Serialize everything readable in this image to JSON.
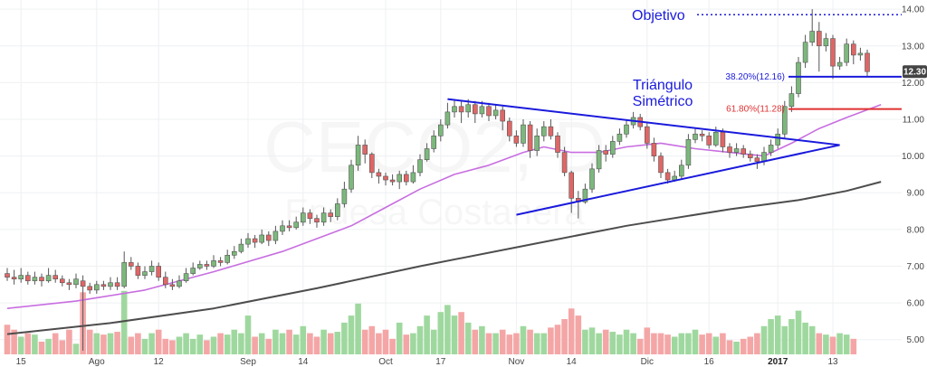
{
  "chart_data": {
    "type": "candlestick",
    "watermark": {
      "ticker": "CECO2, D",
      "name": "Endesa Costanera"
    },
    "y_axis": {
      "min": 4.55,
      "max": 14.25,
      "ticks": [
        "14.00",
        "13.00",
        "12.00",
        "11.00",
        "10.00",
        "9.00",
        "8.00",
        "7.00",
        "6.00",
        "5.00"
      ]
    },
    "x_axis": {
      "ticks": [
        {
          "label": "15",
          "i": 2
        },
        {
          "label": "Ago",
          "i": 13
        },
        {
          "label": "12",
          "i": 22
        },
        {
          "label": "Sep",
          "i": 35
        },
        {
          "label": "14",
          "i": 43
        },
        {
          "label": "Oct",
          "i": 55
        },
        {
          "label": "17",
          "i": 63
        },
        {
          "label": "Nov",
          "i": 74
        },
        {
          "label": "14",
          "i": 82
        },
        {
          "label": "Dic",
          "i": 93
        },
        {
          "label": "16",
          "i": 102
        },
        {
          "label": "2017",
          "i": 112,
          "bold": true
        },
        {
          "label": "13",
          "i": 120
        }
      ]
    },
    "price_badge": "12.30",
    "candles": [
      [
        6.8,
        6.7,
        6.95,
        6.6
      ],
      [
        6.7,
        6.65,
        6.9,
        6.5
      ],
      [
        6.65,
        6.75,
        6.95,
        6.55
      ],
      [
        6.75,
        6.6,
        6.85,
        6.5
      ],
      [
        6.6,
        6.7,
        6.85,
        6.5
      ],
      [
        6.7,
        6.6,
        6.8,
        6.45
      ],
      [
        6.6,
        6.75,
        6.95,
        6.55
      ],
      [
        6.75,
        6.65,
        6.9,
        6.55
      ],
      [
        6.65,
        6.55,
        6.75,
        6.45
      ],
      [
        6.55,
        6.5,
        6.65,
        6.35
      ],
      [
        6.5,
        6.65,
        6.8,
        6.4
      ],
      [
        6.6,
        6.45,
        6.75,
        4.7
      ],
      [
        6.45,
        6.35,
        6.55,
        6.25
      ],
      [
        6.35,
        6.5,
        6.6,
        6.25
      ],
      [
        6.5,
        6.45,
        6.6,
        6.35
      ],
      [
        6.45,
        6.55,
        6.7,
        6.35
      ],
      [
        6.55,
        6.45,
        6.7,
        6.35
      ],
      [
        6.45,
        7.1,
        7.4,
        6.4
      ],
      [
        7.1,
        7.0,
        7.25,
        6.9
      ],
      [
        7.0,
        6.75,
        7.1,
        6.65
      ],
      [
        6.75,
        6.85,
        7.0,
        6.65
      ],
      [
        6.85,
        7.0,
        7.15,
        6.75
      ],
      [
        7.0,
        6.7,
        7.1,
        6.6
      ],
      [
        6.7,
        6.5,
        6.85,
        6.4
      ],
      [
        6.5,
        6.45,
        6.65,
        6.35
      ],
      [
        6.45,
        6.6,
        6.75,
        6.4
      ],
      [
        6.6,
        6.8,
        6.95,
        6.55
      ],
      [
        6.8,
        6.95,
        7.1,
        6.75
      ],
      [
        6.95,
        7.05,
        7.15,
        6.9
      ],
      [
        7.05,
        7.0,
        7.15,
        6.9
      ],
      [
        7.0,
        7.15,
        7.3,
        6.95
      ],
      [
        7.15,
        7.1,
        7.25,
        7.0
      ],
      [
        7.1,
        7.3,
        7.45,
        7.05
      ],
      [
        7.3,
        7.4,
        7.55,
        7.2
      ],
      [
        7.4,
        7.6,
        7.75,
        7.35
      ],
      [
        7.6,
        7.75,
        7.9,
        7.5
      ],
      [
        7.75,
        7.65,
        7.85,
        7.5
      ],
      [
        7.65,
        7.85,
        8.0,
        7.6
      ],
      [
        7.85,
        7.7,
        7.95,
        7.55
      ],
      [
        7.7,
        7.95,
        8.1,
        7.6
      ],
      [
        7.95,
        8.1,
        8.25,
        7.85
      ],
      [
        8.1,
        8.05,
        8.25,
        7.95
      ],
      [
        8.05,
        8.2,
        8.35,
        8.0
      ],
      [
        8.2,
        8.45,
        8.6,
        8.1
      ],
      [
        8.45,
        8.3,
        8.55,
        8.15
      ],
      [
        8.3,
        8.2,
        8.4,
        8.05
      ],
      [
        8.2,
        8.45,
        8.6,
        8.1
      ],
      [
        8.45,
        8.35,
        8.55,
        8.2
      ],
      [
        8.35,
        8.7,
        8.85,
        8.25
      ],
      [
        8.7,
        9.1,
        9.3,
        8.6
      ],
      [
        9.1,
        9.75,
        9.9,
        9.0
      ],
      [
        9.75,
        10.3,
        10.55,
        9.6
      ],
      [
        10.3,
        10.05,
        10.45,
        9.8
      ],
      [
        10.05,
        9.55,
        10.1,
        9.4
      ],
      [
        9.55,
        9.45,
        9.65,
        9.25
      ],
      [
        9.45,
        9.35,
        9.55,
        9.2
      ],
      [
        9.35,
        9.3,
        9.5,
        9.2
      ],
      [
        9.3,
        9.5,
        9.6,
        9.1
      ],
      [
        9.5,
        9.3,
        9.6,
        9.2
      ],
      [
        9.3,
        9.55,
        9.75,
        9.25
      ],
      [
        9.55,
        9.9,
        10.05,
        9.45
      ],
      [
        9.9,
        10.2,
        10.35,
        9.85
      ],
      [
        10.2,
        10.55,
        10.7,
        10.1
      ],
      [
        10.55,
        10.85,
        11.0,
        10.4
      ],
      [
        10.85,
        11.2,
        11.45,
        10.75
      ],
      [
        11.2,
        11.35,
        11.55,
        11.05
      ],
      [
        11.35,
        11.2,
        11.5,
        10.9
      ],
      [
        11.2,
        11.4,
        11.55,
        11.05
      ],
      [
        11.4,
        11.15,
        11.5,
        10.9
      ],
      [
        11.15,
        11.35,
        11.5,
        11.05
      ],
      [
        11.35,
        11.1,
        11.45,
        10.95
      ],
      [
        11.1,
        11.25,
        11.4,
        11.0
      ],
      [
        11.25,
        10.95,
        11.35,
        10.7
      ],
      [
        10.95,
        10.55,
        11.05,
        10.4
      ],
      [
        10.55,
        10.35,
        10.7,
        10.25
      ],
      [
        10.35,
        10.85,
        11.0,
        10.25
      ],
      [
        10.85,
        10.15,
        10.95,
        9.95
      ],
      [
        10.15,
        10.55,
        10.75,
        10.0
      ],
      [
        10.55,
        10.8,
        10.95,
        10.4
      ],
      [
        10.8,
        10.55,
        11.0,
        10.45
      ],
      [
        10.55,
        10.1,
        10.65,
        9.95
      ],
      [
        10.1,
        9.55,
        10.25,
        9.45
      ],
      [
        9.55,
        8.85,
        9.6,
        8.45
      ],
      [
        8.85,
        8.75,
        9.05,
        8.3
      ],
      [
        8.75,
        9.1,
        9.25,
        8.7
      ],
      [
        9.1,
        9.65,
        9.8,
        9.0
      ],
      [
        9.65,
        10.15,
        10.3,
        9.55
      ],
      [
        10.15,
        10.05,
        10.3,
        9.85
      ],
      [
        10.05,
        10.4,
        10.55,
        9.95
      ],
      [
        10.4,
        10.6,
        10.75,
        10.3
      ],
      [
        10.6,
        10.85,
        11.0,
        10.5
      ],
      [
        10.85,
        11.05,
        11.2,
        10.75
      ],
      [
        11.05,
        10.8,
        11.15,
        10.7
      ],
      [
        10.8,
        10.35,
        10.9,
        10.2
      ],
      [
        10.35,
        10.0,
        10.5,
        9.85
      ],
      [
        10.0,
        9.55,
        10.1,
        9.4
      ],
      [
        9.55,
        9.35,
        9.65,
        9.25
      ],
      [
        9.35,
        9.45,
        9.6,
        9.3
      ],
      [
        9.45,
        9.75,
        9.9,
        9.35
      ],
      [
        9.75,
        10.45,
        10.6,
        9.65
      ],
      [
        10.45,
        10.6,
        10.75,
        10.35
      ],
      [
        10.6,
        10.55,
        10.7,
        10.4
      ],
      [
        10.55,
        10.3,
        10.65,
        10.2
      ],
      [
        10.3,
        10.65,
        10.8,
        10.25
      ],
      [
        10.65,
        10.25,
        10.75,
        10.1
      ],
      [
        10.25,
        10.1,
        10.35,
        9.95
      ],
      [
        10.1,
        10.2,
        10.35,
        10.0
      ],
      [
        10.2,
        10.05,
        10.3,
        9.95
      ],
      [
        10.05,
        9.95,
        10.15,
        9.85
      ],
      [
        9.95,
        9.85,
        10.05,
        9.65
      ],
      [
        9.85,
        10.1,
        10.25,
        9.75
      ],
      [
        10.1,
        10.3,
        10.45,
        10.0
      ],
      [
        10.3,
        10.6,
        10.75,
        10.2
      ],
      [
        10.6,
        11.35,
        11.5,
        10.5
      ],
      [
        11.35,
        11.7,
        11.9,
        11.2
      ],
      [
        11.7,
        12.55,
        12.7,
        11.6
      ],
      [
        12.55,
        13.1,
        13.3,
        12.4
      ],
      [
        13.1,
        13.4,
        14.0,
        13.0
      ],
      [
        13.4,
        13.0,
        13.65,
        12.3
      ],
      [
        13.0,
        13.2,
        13.35,
        12.85
      ],
      [
        13.2,
        12.45,
        13.3,
        12.1
      ],
      [
        12.45,
        12.55,
        12.7,
        12.35
      ],
      [
        12.55,
        13.05,
        13.2,
        12.45
      ],
      [
        13.05,
        12.75,
        13.15,
        12.5
      ],
      [
        12.75,
        12.8,
        12.95,
        12.6
      ],
      [
        12.8,
        12.3,
        12.9,
        12.15
      ]
    ],
    "volumes": [
      0.42,
      0.35,
      0.25,
      0.3,
      0.28,
      0.18,
      0.22,
      0.3,
      0.2,
      0.35,
      0.15,
      0.88,
      0.35,
      0.3,
      0.28,
      0.3,
      0.32,
      0.9,
      0.25,
      0.3,
      0.22,
      0.3,
      0.35,
      0.22,
      0.2,
      0.25,
      0.3,
      0.22,
      0.28,
      0.2,
      0.25,
      0.3,
      0.28,
      0.35,
      0.3,
      0.55,
      0.25,
      0.3,
      0.22,
      0.35,
      0.3,
      0.35,
      0.28,
      0.4,
      0.3,
      0.25,
      0.35,
      0.3,
      0.32,
      0.45,
      0.55,
      0.72,
      0.35,
      0.4,
      0.3,
      0.35,
      0.22,
      0.45,
      0.28,
      0.3,
      0.4,
      0.55,
      0.35,
      0.6,
      0.7,
      0.55,
      0.6,
      0.45,
      0.35,
      0.4,
      0.3,
      0.3,
      0.35,
      0.28,
      0.3,
      0.4,
      0.35,
      0.3,
      0.3,
      0.38,
      0.42,
      0.5,
      0.65,
      0.55,
      0.35,
      0.38,
      0.3,
      0.35,
      0.32,
      0.28,
      0.35,
      0.3,
      0.22,
      0.38,
      0.3,
      0.3,
      0.28,
      0.25,
      0.3,
      0.3,
      0.35,
      0.28,
      0.3,
      0.25,
      0.3,
      0.2,
      0.18,
      0.22,
      0.25,
      0.3,
      0.4,
      0.5,
      0.55,
      0.4,
      0.5,
      0.62,
      0.45,
      0.4,
      0.3,
      0.28,
      0.25,
      0.3,
      0.28,
      0.22
    ],
    "ma_short": {
      "color": "#c86ee0",
      "points": [
        [
          0,
          5.85
        ],
        [
          10,
          6.05
        ],
        [
          20,
          6.35
        ],
        [
          30,
          6.85
        ],
        [
          40,
          7.4
        ],
        [
          50,
          8.1
        ],
        [
          55,
          8.6
        ],
        [
          60,
          9.1
        ],
        [
          65,
          9.5
        ],
        [
          70,
          9.75
        ],
        [
          75,
          10.1
        ],
        [
          78,
          10.25
        ],
        [
          82,
          10.1
        ],
        [
          86,
          10.1
        ],
        [
          90,
          10.25
        ],
        [
          95,
          10.35
        ],
        [
          100,
          10.2
        ],
        [
          105,
          10.1
        ],
        [
          110,
          10.0
        ],
        [
          114,
          10.35
        ],
        [
          118,
          10.75
        ],
        [
          122,
          11.05
        ],
        [
          127,
          11.4
        ]
      ]
    },
    "ma_long": {
      "color": "#4d4d4d",
      "points": [
        [
          0,
          5.15
        ],
        [
          15,
          5.45
        ],
        [
          30,
          5.85
        ],
        [
          45,
          6.4
        ],
        [
          60,
          7.0
        ],
        [
          75,
          7.55
        ],
        [
          90,
          8.1
        ],
        [
          105,
          8.55
        ],
        [
          115,
          8.8
        ],
        [
          122,
          9.05
        ],
        [
          127,
          9.3
        ]
      ]
    },
    "triangle": {
      "color": "#1a1adc",
      "upper": [
        [
          64,
          11.55
        ],
        [
          121,
          10.3
        ]
      ],
      "lower": [
        [
          74,
          8.4
        ],
        [
          121,
          10.3
        ]
      ],
      "label": [
        "Triángulo",
        "Simétrico"
      ]
    },
    "objetivo": {
      "label": "Objetivo",
      "value": 13.85,
      "color": "#1a1adc"
    },
    "fib_levels": [
      {
        "label": "38.20%(12.16)",
        "value": 12.16,
        "color": "#1a1adc"
      },
      {
        "label": "61.80%(11.28)",
        "value": 11.28,
        "color": "#e03030"
      }
    ],
    "colors": {
      "up": "#7cb87c",
      "down": "#e06666",
      "vol_up": "#9fd89f",
      "vol_down": "#f4a6a6",
      "badge": "#444444"
    }
  }
}
